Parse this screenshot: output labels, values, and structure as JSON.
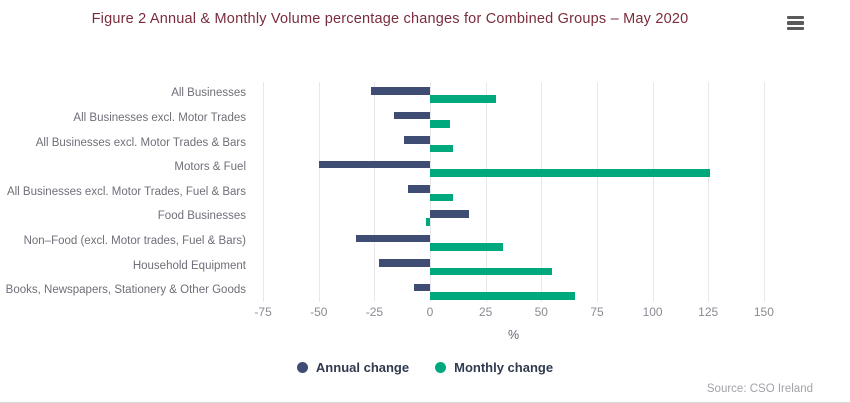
{
  "header": {
    "title": "Figure 2 Annual & Monthly Volume percentage changes for Combined Groups – May 2020",
    "title_color": "#7b2c3c",
    "menu_icon": "hamburger-menu-icon"
  },
  "chart_data": {
    "type": "bar",
    "orientation": "horizontal",
    "title": "Figure 2 Annual & Monthly Volume percentage changes for Combined Groups – May 2020",
    "categories": [
      "All Businesses",
      "All Businesses excl. Motor Trades",
      "All Businesses excl. Motor Trades & Bars",
      "Motors & Fuel",
      "All Businesses excl. Motor Trades, Fuel & Bars",
      "Food Businesses",
      "Non–Food (excl. Motor trades, Fuel & Bars)",
      "Household Equipment",
      "Books, Newspapers, Stationery & Other Goods"
    ],
    "series": [
      {
        "name": "Annual change",
        "color": "#3f4d75",
        "values": [
          -26.6,
          -16.1,
          -11.6,
          -49.7,
          -9.8,
          17.3,
          -33.1,
          -23.0,
          -7.1
        ]
      },
      {
        "name": "Monthly change",
        "color": "#00a87d",
        "values": [
          29.8,
          9.0,
          10.4,
          125.6,
          10.4,
          -1.8,
          32.6,
          54.6,
          65.0
        ]
      }
    ],
    "xlabel": "%",
    "x_ticks": [
      -75,
      -50,
      -25,
      0,
      25,
      50,
      75,
      100,
      125,
      150
    ],
    "xlim": [
      -80,
      155
    ],
    "grid": true,
    "legend_position": "bottom-center"
  },
  "footer": {
    "source": "Source: CSO Ireland"
  }
}
